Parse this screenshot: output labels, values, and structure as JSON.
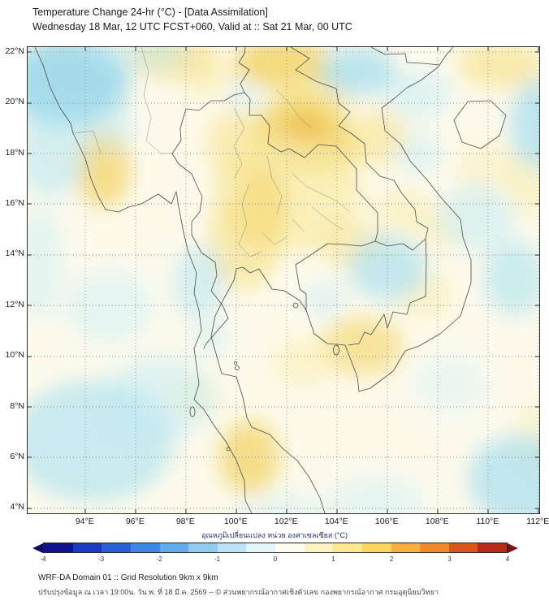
{
  "header": {
    "title_line1": "Temperature Change 24-hr (°C) - [Data Assimilation]",
    "title_line2": "Wednesday 18 Mar, 12 UTC FCST+060, Valid at :: Sat 21 Mar, 00 UTC"
  },
  "map": {
    "lat_labels": [
      "22°N",
      "20°N",
      "18°N",
      "16°N",
      "14°N",
      "12°N",
      "10°N",
      "8°N",
      "6°N",
      "4°N"
    ],
    "lon_labels": [
      "94°E",
      "96°E",
      "98°E",
      "100°E",
      "102°E",
      "104°E",
      "106°E",
      "108°E",
      "110°E",
      "112°E"
    ],
    "extent": {
      "lon_min_label": "94°E",
      "lon_max_label": "112°E",
      "lat_min_label": "4°N",
      "lat_max_label": "22°N"
    },
    "field_colors": {
      "cool": "#9fdcef",
      "warm": "#f2d468",
      "warmest": "#eeb33c",
      "background": "#fdfaec"
    }
  },
  "colorbar": {
    "title": "อุณหภูมิเปลี่ยนแปลง หน่วย องศาเซลเซียส (°C)",
    "range": [
      -4,
      4
    ],
    "tick_labels": [
      "-4",
      "-3",
      "-2",
      "-1",
      "0",
      "1",
      "2",
      "3",
      "4"
    ],
    "segment_colors": [
      "#10128f",
      "#1b3ac4",
      "#2a5fd6",
      "#3e86e2",
      "#63ace9",
      "#8fccf1",
      "#bce4f6",
      "#e4f4fb",
      "#fdfbe9",
      "#fdf3c2",
      "#fde694",
      "#fdd45e",
      "#f8b13f",
      "#ef8a2c",
      "#da5420",
      "#b52a18"
    ],
    "arrow_left_color": "#0a0b66",
    "arrow_right_color": "#7c100f",
    "tick_color": "#26306e"
  },
  "footer": {
    "line1": "WRF-DA Domain 01 :: Grid Resolution 9km x 9km",
    "line2": "ปรับปรุงข้อมูล ณ เวลา 19:00น. วัน พ. ที่ 18 มี.ค. 2569 -- © ส่วนพยากรณ์อากาศเชิงตัวเลข กองพยากรณ์อากาศ กรมอุตุนิยมวิทยา"
  }
}
